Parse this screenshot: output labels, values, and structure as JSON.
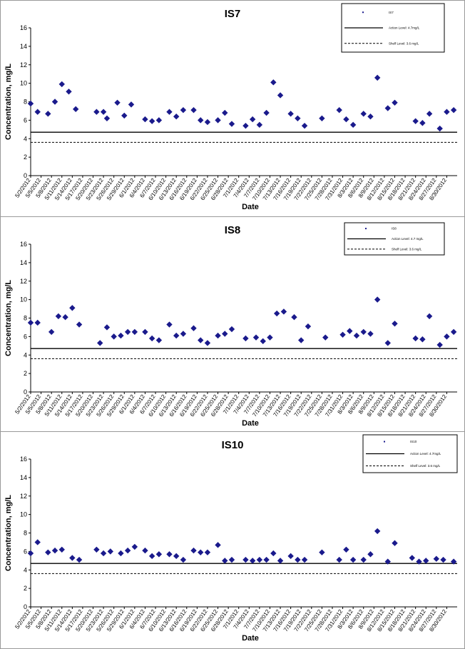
{
  "chart_data": [
    {
      "type": "scatter",
      "title": "IS7",
      "xlabel": "Date",
      "ylabel": "Concentration, mg/L",
      "ylim": [
        0,
        16
      ],
      "yticks": [
        "0",
        "2",
        "4",
        "6",
        "8",
        "10",
        "12",
        "14",
        "16"
      ],
      "xticks": [
        "5/2/2012",
        "5/5/2012",
        "5/8/2012",
        "5/11/2012",
        "5/14/2012",
        "5/17/2012",
        "5/20/2012",
        "5/23/2012",
        "5/26/2012",
        "5/29/2012",
        "6/1/2012",
        "6/4/2012",
        "6/7/2012",
        "6/10/2012",
        "6/13/2012",
        "6/16/2012",
        "6/19/2012",
        "6/22/2012",
        "6/25/2012",
        "6/28/2012",
        "7/1/2012",
        "7/4/2012",
        "7/7/2012",
        "7/10/2012",
        "7/13/2012",
        "7/16/2012",
        "7/19/2012",
        "7/22/2012",
        "7/25/2012",
        "7/28/2012",
        "7/31/2012",
        "8/3/2012",
        "8/6/2012",
        "8/9/2012",
        "8/12/2012",
        "8/15/2012",
        "8/18/2012",
        "8/21/2012",
        "8/24/2012",
        "8/27/2012",
        "8/30/2012"
      ],
      "grid": false,
      "legend_position": "top-right",
      "series": [
        {
          "name": "IS7",
          "marker": "diamond",
          "color": "#1a1a8c",
          "x": [
            "5/2/2012",
            "5/4/2012",
            "5/7/2012",
            "5/9/2012",
            "5/11/2012",
            "5/13/2012",
            "5/15/2012",
            "5/21/2012",
            "5/23/2012",
            "5/24/2012",
            "5/27/2012",
            "5/29/2012",
            "5/31/2012",
            "6/4/2012",
            "6/6/2012",
            "6/8/2012",
            "6/11/2012",
            "6/13/2012",
            "6/15/2012",
            "6/18/2012",
            "6/20/2012",
            "6/22/2012",
            "6/25/2012",
            "6/27/2012",
            "6/29/2012",
            "7/3/2012",
            "7/5/2012",
            "7/7/2012",
            "7/9/2012",
            "7/11/2012",
            "7/13/2012",
            "7/16/2012",
            "7/18/2012",
            "7/20/2012",
            "7/25/2012",
            "7/30/2012",
            "8/1/2012",
            "8/3/2012",
            "8/6/2012",
            "8/8/2012",
            "8/10/2012",
            "8/13/2012",
            "8/15/2012",
            "8/21/2012",
            "8/23/2012",
            "8/25/2012",
            "8/28/2012",
            "8/30/2012",
            "9/1/2012"
          ],
          "y": [
            7.8,
            6.9,
            6.7,
            8.0,
            9.9,
            9.1,
            7.2,
            6.9,
            6.9,
            6.2,
            7.9,
            6.5,
            7.7,
            6.1,
            5.9,
            6.0,
            6.9,
            6.4,
            7.1,
            7.1,
            6.0,
            5.8,
            6.0,
            6.8,
            5.6,
            5.4,
            6.1,
            5.5,
            6.8,
            10.1,
            8.7,
            6.7,
            6.2,
            5.4,
            6.2,
            7.1,
            6.1,
            5.5,
            6.7,
            6.4,
            10.6,
            7.3,
            7.9,
            5.9,
            5.7,
            6.7,
            5.1,
            6.9,
            7.1
          ]
        },
        {
          "name": "Action Level: 4.7mg/L",
          "style": "solid",
          "value": 4.7
        },
        {
          "name": "Shelf Level: 3.6 mg/L",
          "style": "dashed",
          "value": 3.6
        }
      ]
    },
    {
      "type": "scatter",
      "title": "IS8",
      "xlabel": "Date",
      "ylabel": "Concentration, mg/L",
      "ylim": [
        0,
        16
      ],
      "yticks": [
        "0",
        "2",
        "4",
        "6",
        "8",
        "10",
        "12",
        "14",
        "16"
      ],
      "xticks": [
        "5/2/2012",
        "5/5/2012",
        "5/8/2012",
        "5/11/2012",
        "5/14/2012",
        "5/17/2012",
        "5/20/2012",
        "5/23/2012",
        "5/26/2012",
        "5/29/2012",
        "6/1/2012",
        "6/4/2012",
        "6/7/2012",
        "6/10/2012",
        "6/13/2012",
        "6/16/2012",
        "6/19/2012",
        "6/22/2012",
        "6/25/2012",
        "6/28/2012",
        "7/1/2012",
        "7/4/2012",
        "7/7/2012",
        "7/10/2012",
        "7/13/2012",
        "7/16/2012",
        "7/19/2012",
        "7/22/2012",
        "7/25/2012",
        "7/28/2012",
        "7/31/2012",
        "8/3/2012",
        "8/6/2012",
        "8/9/2012",
        "8/12/2012",
        "8/15/2012",
        "8/18/2012",
        "8/21/2012",
        "8/24/2012",
        "8/27/2012",
        "8/30/2012"
      ],
      "grid": false,
      "legend_position": "top-right",
      "series": [
        {
          "name": "IS8",
          "marker": "diamond",
          "color": "#1a1a8c",
          "x": [
            "5/2/2012",
            "5/4/2012",
            "5/8/2012",
            "5/10/2012",
            "5/12/2012",
            "5/14/2012",
            "5/16/2012",
            "5/22/2012",
            "5/24/2012",
            "5/26/2012",
            "5/28/2012",
            "5/30/2012",
            "6/1/2012",
            "6/4/2012",
            "6/6/2012",
            "6/8/2012",
            "6/11/2012",
            "6/13/2012",
            "6/15/2012",
            "6/18/2012",
            "6/20/2012",
            "6/22/2012",
            "6/25/2012",
            "6/27/2012",
            "6/29/2012",
            "7/3/2012",
            "7/6/2012",
            "7/8/2012",
            "7/10/2012",
            "7/12/2012",
            "7/14/2012",
            "7/17/2012",
            "7/19/2012",
            "7/21/2012",
            "7/26/2012",
            "7/31/2012",
            "8/2/2012",
            "8/4/2012",
            "8/6/2012",
            "8/8/2012",
            "8/10/2012",
            "8/13/2012",
            "8/15/2012",
            "8/21/2012",
            "8/23/2012",
            "8/25/2012",
            "8/28/2012",
            "8/30/2012",
            "9/1/2012"
          ],
          "y": [
            7.5,
            7.5,
            6.5,
            8.2,
            8.1,
            9.1,
            7.3,
            5.3,
            7.0,
            6.0,
            6.1,
            6.5,
            6.5,
            6.5,
            5.8,
            5.6,
            7.3,
            6.1,
            6.3,
            6.9,
            5.6,
            5.3,
            6.1,
            6.3,
            6.8,
            5.8,
            5.9,
            5.5,
            5.9,
            8.5,
            8.7,
            8.1,
            5.6,
            7.1,
            5.9,
            6.2,
            6.6,
            6.1,
            6.5,
            6.3,
            10.0,
            5.3,
            7.4,
            5.8,
            5.7,
            8.2,
            5.1,
            6.0,
            6.5
          ]
        },
        {
          "name": "Action Level: 4.7 mg/L",
          "style": "solid",
          "value": 4.7
        },
        {
          "name": "Shelf Level: 3.6 mg/L",
          "style": "dashed",
          "value": 3.6
        }
      ]
    },
    {
      "type": "scatter",
      "title": "IS10",
      "xlabel": "Date",
      "ylabel": "Concentration, mg/L",
      "ylim": [
        0,
        16
      ],
      "yticks": [
        "0",
        "2",
        "4",
        "6",
        "8",
        "10",
        "12",
        "14",
        "16"
      ],
      "xticks": [
        "5/2/2012",
        "5/5/2012",
        "5/8/2012",
        "5/11/2012",
        "5/14/2012",
        "5/17/2012",
        "5/20/2012",
        "5/23/2012",
        "5/26/2012",
        "5/29/2012",
        "6/1/2012",
        "6/4/2012",
        "6/7/2012",
        "6/10/2012",
        "6/13/2012",
        "6/16/2012",
        "6/19/2012",
        "6/22/2012",
        "6/25/2012",
        "6/28/2012",
        "7/1/2012",
        "7/4/2012",
        "7/7/2012",
        "7/10/2012",
        "7/13/2012",
        "7/16/2012",
        "7/19/2012",
        "7/22/2012",
        "7/25/2012",
        "7/28/2012",
        "7/31/2012",
        "8/3/2012",
        "8/6/2012",
        "8/9/2012",
        "8/12/2012",
        "8/15/2012",
        "8/18/2012",
        "8/21/2012",
        "8/24/2012",
        "8/27/2012",
        "8/30/2012"
      ],
      "grid": false,
      "legend_position": "top-right",
      "series": [
        {
          "name": "IS10",
          "marker": "diamond",
          "color": "#1a1a8c",
          "x": [
            "5/2/2012",
            "5/4/2012",
            "5/7/2012",
            "5/9/2012",
            "5/11/2012",
            "5/14/2012",
            "5/16/2012",
            "5/21/2012",
            "5/23/2012",
            "5/25/2012",
            "5/28/2012",
            "5/30/2012",
            "6/1/2012",
            "6/4/2012",
            "6/6/2012",
            "6/8/2012",
            "6/11/2012",
            "6/13/2012",
            "6/15/2012",
            "6/18/2012",
            "6/20/2012",
            "6/22/2012",
            "6/25/2012",
            "6/27/2012",
            "6/29/2012",
            "7/3/2012",
            "7/5/2012",
            "7/7/2012",
            "7/9/2012",
            "7/11/2012",
            "7/13/2012",
            "7/16/2012",
            "7/18/2012",
            "7/20/2012",
            "7/25/2012",
            "7/30/2012",
            "8/1/2012",
            "8/3/2012",
            "8/6/2012",
            "8/8/2012",
            "8/10/2012",
            "8/13/2012",
            "8/15/2012",
            "8/20/2012",
            "8/22/2012",
            "8/24/2012",
            "8/27/2012",
            "8/29/2012",
            "9/1/2012"
          ],
          "y": [
            5.8,
            7.0,
            5.9,
            6.1,
            6.2,
            5.3,
            5.1,
            6.2,
            5.8,
            6.0,
            5.8,
            6.1,
            6.5,
            6.1,
            5.5,
            5.7,
            5.7,
            5.5,
            5.1,
            6.1,
            5.9,
            5.9,
            6.7,
            5.0,
            5.1,
            5.1,
            5.0,
            5.1,
            5.1,
            5.8,
            5.0,
            5.5,
            5.1,
            5.1,
            5.9,
            5.1,
            6.2,
            5.1,
            5.1,
            5.7,
            8.2,
            4.9,
            6.9,
            5.3,
            4.9,
            5.0,
            5.2,
            5.1,
            4.9
          ]
        },
        {
          "name": "Action Level: 4.7mg/L",
          "style": "solid",
          "value": 4.7
        },
        {
          "name": "Shelf Level: 3.6 mg/L",
          "style": "dashed",
          "value": 3.6
        }
      ]
    }
  ]
}
